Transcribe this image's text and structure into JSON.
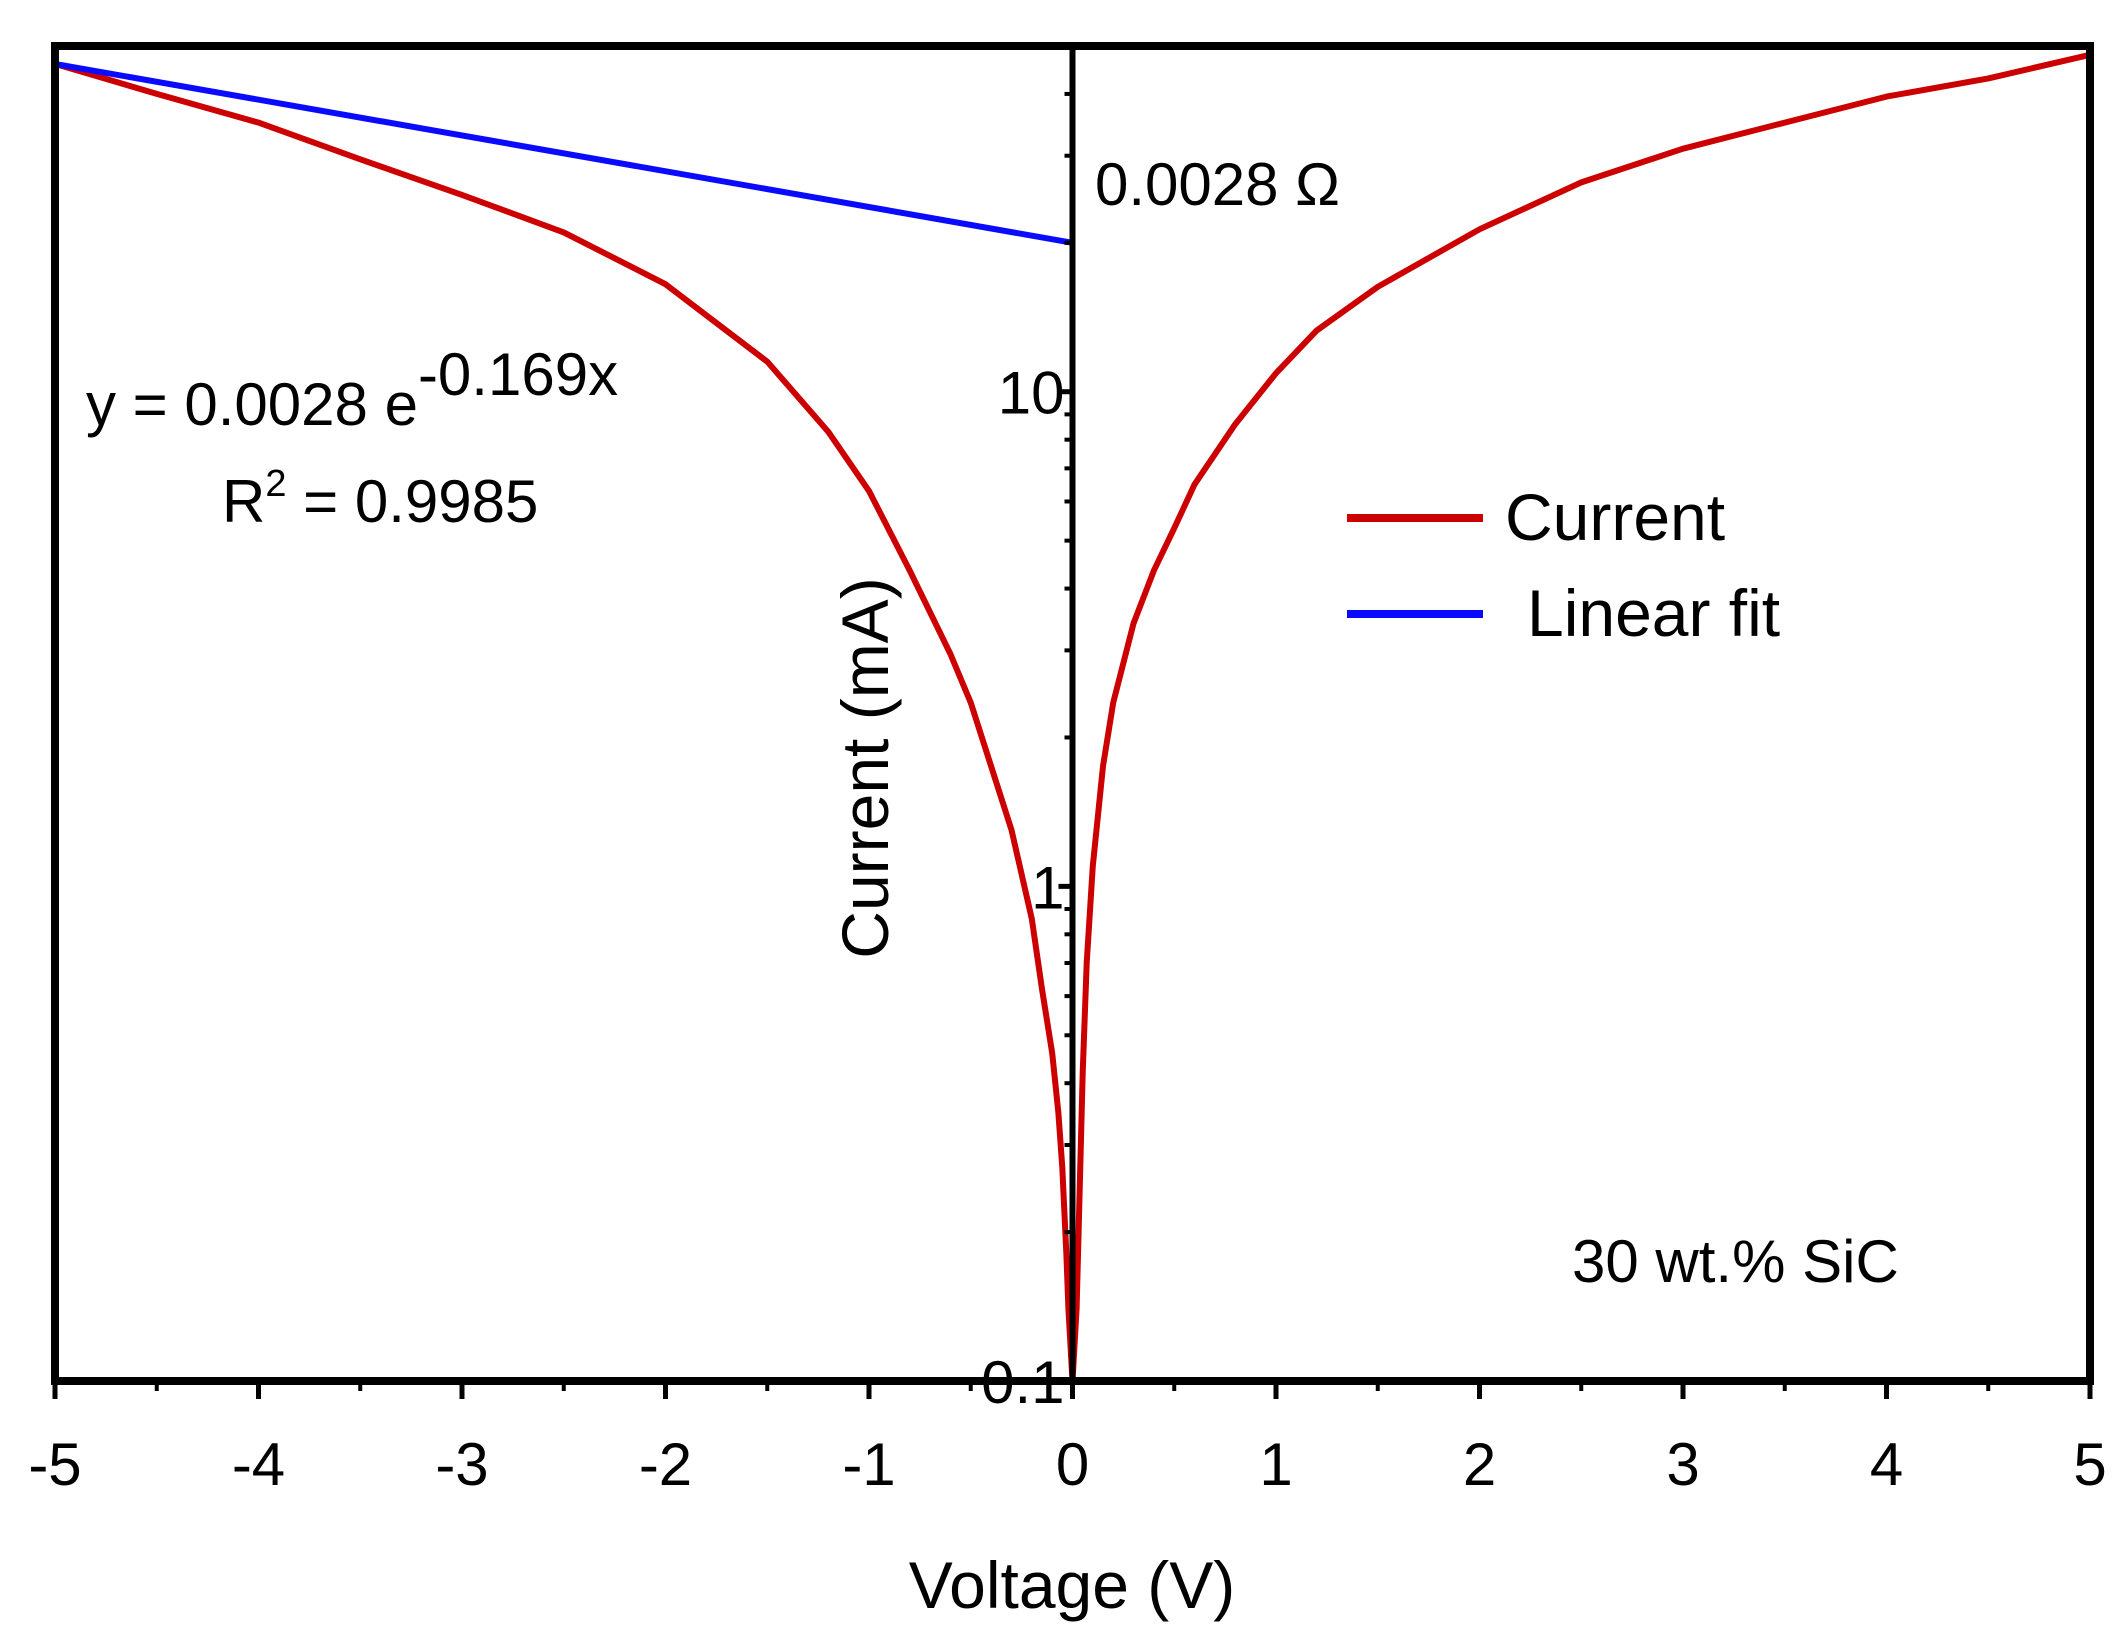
{
  "chart_data": {
    "type": "line",
    "title": "",
    "xlabel": "Voltage (V)",
    "ylabel": "Current (mA)",
    "xscale": "linear",
    "yscale": "log",
    "xlim": [
      -5,
      5
    ],
    "ylim": [
      0.1,
      50
    ],
    "x_ticks": [
      -5,
      -4,
      -3,
      -2,
      -1,
      0,
      1,
      2,
      3,
      4,
      5
    ],
    "x_tick_labels": [
      "-5",
      "-4",
      "-3",
      "-2",
      "-1",
      "0",
      "1",
      "2",
      "3",
      "4",
      "5"
    ],
    "y_ticks": [
      0.1,
      1,
      10
    ],
    "y_tick_labels": [
      "0.1",
      "1",
      "10"
    ],
    "series": [
      {
        "name": "Current",
        "color": "#cc0000",
        "x": [
          -5,
          -4.5,
          -4,
          -3.5,
          -3,
          -2.5,
          -2,
          -1.5,
          -1.2,
          -1,
          -0.8,
          -0.6,
          -0.5,
          -0.4,
          -0.3,
          -0.2,
          -0.15,
          -0.1,
          -0.07,
          -0.05,
          -0.03,
          -0.02,
          0,
          0.02,
          0.03,
          0.05,
          0.07,
          0.1,
          0.15,
          0.2,
          0.3,
          0.4,
          0.5,
          0.6,
          0.8,
          1,
          1.2,
          1.5,
          2,
          2.5,
          3,
          3.5,
          4,
          4.5,
          5
        ],
        "y": [
          46,
          40,
          35,
          29.5,
          25,
          21,
          16.5,
          11.5,
          8.3,
          6.3,
          4.35,
          2.95,
          2.35,
          1.75,
          1.3,
          0.86,
          0.62,
          0.46,
          0.35,
          0.27,
          0.18,
          0.14,
          0.1,
          0.14,
          0.2,
          0.42,
          0.7,
          1.1,
          1.75,
          2.35,
          3.4,
          4.35,
          5.3,
          6.5,
          8.6,
          10.9,
          13.3,
          16.3,
          21.3,
          26.5,
          31,
          35,
          39.5,
          43,
          48
        ]
      },
      {
        "name": "Linear fit",
        "color": "#0a0aff",
        "x": [
          -5,
          0
        ],
        "y": [
          46,
          20
        ]
      }
    ],
    "annotations": {
      "resistance": "0.0028 Ω",
      "equation_prefix": "y = 0.0028 e",
      "equation_exponent": "-0.169x",
      "r_squared_prefix": "R",
      "r_squared_power": "2",
      "r_squared_value": " = 0.9985",
      "sample": "30 wt.% SiC"
    },
    "legend": {
      "placement": "right-middle",
      "entries": [
        "Current",
        "Linear fit"
      ]
    }
  }
}
